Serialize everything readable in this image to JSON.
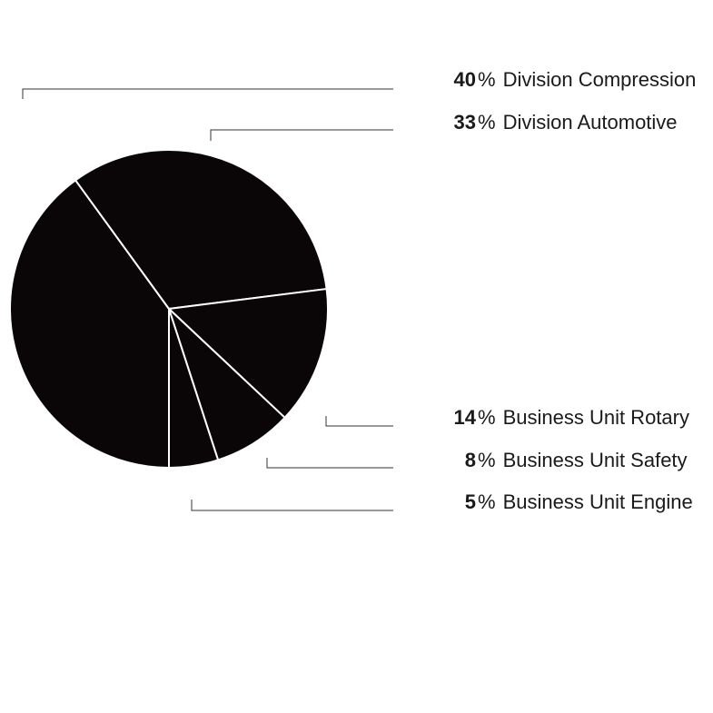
{
  "chart_data": {
    "type": "pie",
    "slices": [
      {
        "percent": 40,
        "label": "Division Compression"
      },
      {
        "percent": 33,
        "label": "Division Automotive"
      },
      {
        "percent": 14,
        "label": "Business Unit Rotary"
      },
      {
        "percent": 8,
        "label": "Business Unit Safety"
      },
      {
        "percent": 5,
        "label": "Business Unit Engine"
      }
    ],
    "colors": {
      "slice_fill": "#0a0506",
      "slice_border": "#ffffff",
      "leader_line": "#333333",
      "text": "#1a1a1a"
    }
  },
  "legend": [
    {
      "value": "40",
      "unit": "%",
      "label": "Division Compression"
    },
    {
      "value": "33",
      "unit": "%",
      "label": "Division Automotive"
    },
    {
      "value": "14",
      "unit": "%",
      "label": "Business Unit Rotary"
    },
    {
      "value": "8",
      "unit": "%",
      "label": "Business Unit Safety"
    },
    {
      "value": "5",
      "unit": "%",
      "label": "Business Unit Engine"
    }
  ]
}
